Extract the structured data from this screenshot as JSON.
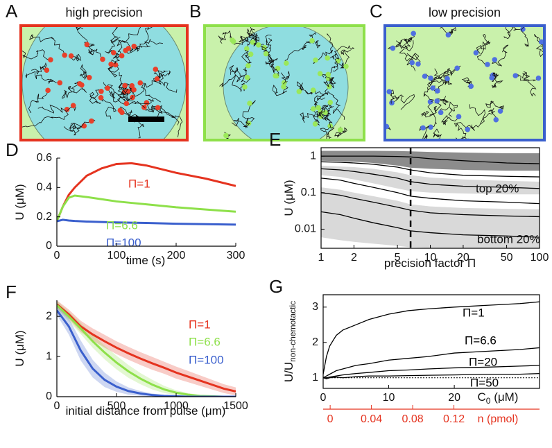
{
  "panels": [
    {
      "label": "A",
      "title": "high precision",
      "color": "#e5331f",
      "dot_color": "#e8402a",
      "circle": true
    },
    {
      "label": "B",
      "title": "",
      "color": "#8ee04a",
      "dot_color": "#9be85a",
      "circle": true
    },
    {
      "label": "C",
      "title": "low precision",
      "color": "#3a5fcd",
      "dot_color": "#4f70e0",
      "circle": false
    }
  ],
  "chart_data": [
    {
      "type": "line",
      "panel_label": "D",
      "xlabel": "time (s)",
      "ylabel": "U (μM)",
      "box": false,
      "x": [
        0,
        10,
        20,
        30,
        50,
        75,
        100,
        125,
        150,
        200,
        250,
        300
      ],
      "xlim": [
        0,
        300
      ],
      "xticks": [
        0,
        100,
        200,
        300
      ],
      "ylim": [
        0,
        0.6
      ],
      "yticks": [
        0,
        0.2,
        0.4,
        0.6
      ],
      "series": [
        {
          "name": "Π=1",
          "color": "#e5331f",
          "values": [
            0.17,
            0.27,
            0.35,
            0.4,
            0.48,
            0.53,
            0.56,
            0.565,
            0.55,
            0.5,
            0.46,
            0.41
          ]
        },
        {
          "name": "Π=6.6",
          "color": "#8ee04a",
          "values": [
            0.17,
            0.27,
            0.33,
            0.345,
            0.335,
            0.32,
            0.305,
            0.295,
            0.285,
            0.265,
            0.25,
            0.235
          ]
        },
        {
          "name": "Π=100",
          "color": "#3a5fcd",
          "values": [
            0.17,
            0.18,
            0.175,
            0.172,
            0.168,
            0.165,
            0.162,
            0.16,
            0.158,
            0.153,
            0.15,
            0.147
          ]
        }
      ]
    },
    {
      "type": "line",
      "panel_label": "E",
      "xlabel": "precision factor Π",
      "ylabel": "U (μM)",
      "box": true,
      "xlog": true,
      "ylog": true,
      "x": [
        1,
        1.5,
        2,
        3,
        5,
        6.6,
        10,
        20,
        50,
        100
      ],
      "xlim": [
        1,
        100
      ],
      "xticks": [
        1,
        2,
        5,
        10,
        20,
        50,
        100
      ],
      "ylim": [
        0.003,
        1.7
      ],
      "yticks": [
        0.01,
        0.1,
        1
      ],
      "vline": 6.6,
      "bands": [
        {
          "color": "#8c8c8c",
          "upper": [
            1.4,
            1.4,
            1.4,
            1.4,
            1.38,
            1.35,
            1.3,
            1.25,
            1.2,
            1.2
          ],
          "lower": [
            0.75,
            0.73,
            0.7,
            0.65,
            0.55,
            0.48,
            0.45,
            0.42,
            0.4,
            0.4
          ]
        },
        {
          "color": "#d9d9d9",
          "upper": [
            0.55,
            0.52,
            0.5,
            0.45,
            0.36,
            0.3,
            0.26,
            0.23,
            0.21,
            0.2
          ],
          "lower": [
            0.3,
            0.27,
            0.23,
            0.18,
            0.13,
            0.11,
            0.1,
            0.095,
            0.09,
            0.09
          ]
        },
        {
          "color": "#d9d9d9",
          "upper": [
            0.14,
            0.12,
            0.1,
            0.08,
            0.06,
            0.048,
            0.042,
            0.038,
            0.036,
            0.035
          ],
          "lower": [
            0.006,
            0.005,
            0.0045,
            0.004,
            0.0035,
            0.0032,
            0.0031,
            0.003,
            0.003,
            0.003
          ]
        }
      ],
      "line_color": "#000000",
      "lines": [
        [
          1.0,
          1.0,
          1.0,
          1.0,
          0.98,
          0.95,
          0.85,
          0.75,
          0.65,
          0.62
        ],
        [
          0.7,
          0.68,
          0.65,
          0.6,
          0.5,
          0.42,
          0.35,
          0.3,
          0.28,
          0.27
        ],
        [
          0.45,
          0.42,
          0.38,
          0.32,
          0.25,
          0.2,
          0.17,
          0.15,
          0.14,
          0.13
        ],
        [
          0.25,
          0.22,
          0.18,
          0.14,
          0.1,
          0.08,
          0.07,
          0.06,
          0.055,
          0.05
        ],
        [
          0.1,
          0.085,
          0.07,
          0.055,
          0.04,
          0.033,
          0.028,
          0.025,
          0.023,
          0.022
        ],
        [
          0.03,
          0.025,
          0.02,
          0.015,
          0.011,
          0.009,
          0.008,
          0.007,
          0.0065,
          0.006
        ]
      ],
      "annotations": [
        "top 20%",
        "bottom 20%"
      ]
    },
    {
      "type": "line",
      "panel_label": "F",
      "xlabel": "initial distance from pulse (μm)",
      "ylabel": "U (μM)",
      "box": false,
      "x": [
        0,
        100,
        200,
        300,
        400,
        500,
        600,
        700,
        800,
        900,
        1000,
        1100,
        1200,
        1300,
        1400,
        1500
      ],
      "xlim": [
        0,
        1500
      ],
      "xticks": [
        0,
        500,
        1000,
        1500
      ],
      "ylim": [
        0,
        2.4
      ],
      "yticks": [
        0,
        1,
        2
      ],
      "series": [
        {
          "name": "Π=1",
          "color": "#e5331f",
          "values": [
            2.3,
            2.05,
            1.75,
            1.55,
            1.38,
            1.22,
            1.08,
            0.95,
            0.83,
            0.72,
            0.6,
            0.5,
            0.4,
            0.3,
            0.2,
            0.13
          ],
          "error": [
            0.1,
            0.12,
            0.14,
            0.15,
            0.16,
            0.16,
            0.16,
            0.16,
            0.16,
            0.15,
            0.15,
            0.14,
            0.13,
            0.12,
            0.11,
            0.1
          ]
        },
        {
          "name": "Π=6.6",
          "color": "#8ee04a",
          "values": [
            2.28,
            2.0,
            1.7,
            1.38,
            1.1,
            0.85,
            0.63,
            0.45,
            0.3,
            0.18,
            0.1,
            0.05,
            0.02,
            0.01,
            0,
            0
          ],
          "error": [
            0.1,
            0.12,
            0.14,
            0.16,
            0.17,
            0.17,
            0.16,
            0.14,
            0.12,
            0.09,
            0.06,
            0.04,
            0.02,
            0.01,
            0.01,
            0.01
          ]
        },
        {
          "name": "Π=100",
          "color": "#3a5fcd",
          "values": [
            2.15,
            1.75,
            1.15,
            0.7,
            0.42,
            0.25,
            0.14,
            0.08,
            0.04,
            0.02,
            0.01,
            0,
            0,
            0,
            0,
            0
          ],
          "error": [
            0.12,
            0.2,
            0.25,
            0.22,
            0.18,
            0.13,
            0.09,
            0.06,
            0.04,
            0.02,
            0.01,
            0.01,
            0.01,
            0,
            0,
            0
          ]
        }
      ]
    },
    {
      "type": "line",
      "panel_label": "G",
      "ylabel": "U/U",
      "ylabel_sub": "non-chemotactic",
      "box": true,
      "xlabel": "C",
      "xlabel_sub": "0",
      "xlabel_unit": " (μM)",
      "x": [
        0,
        0.5,
        1,
        2,
        3,
        5,
        7,
        10,
        13,
        16,
        20,
        25,
        30,
        33
      ],
      "xlim": [
        0,
        33
      ],
      "xticks": [
        0,
        10,
        20
      ],
      "ylim": [
        0.7,
        3.35
      ],
      "yticks": [
        1,
        2,
        3
      ],
      "x2lim": [
        -0.0068,
        0.203
      ],
      "x2ticks": [
        0,
        0.04,
        0.08,
        0.12
      ],
      "x2label": "n (pmol)",
      "x2color": "#e5331f",
      "reference_line": 1,
      "series": [
        {
          "name": "Π=1",
          "color": "#000000",
          "values": [
            1.1,
            1.6,
            1.9,
            2.2,
            2.35,
            2.5,
            2.65,
            2.8,
            2.9,
            2.95,
            3.0,
            3.05,
            3.1,
            3.15
          ]
        },
        {
          "name": "Π=6.6",
          "color": "#000000",
          "values": [
            1.0,
            1.05,
            1.1,
            1.2,
            1.25,
            1.35,
            1.4,
            1.5,
            1.55,
            1.6,
            1.7,
            1.75,
            1.8,
            1.85
          ]
        },
        {
          "name": "Π=20",
          "color": "#000000",
          "values": [
            1.0,
            1.0,
            1.02,
            1.05,
            1.08,
            1.12,
            1.15,
            1.2,
            1.22,
            1.25,
            1.28,
            1.3,
            1.33,
            1.35
          ]
        },
        {
          "name": "Π=50",
          "color": "#000000",
          "values": [
            1.0,
            0.97,
            1.0,
            1.02,
            1.0,
            1.03,
            1.05,
            1.05,
            1.06,
            1.07,
            1.08,
            1.1,
            1.1,
            1.12
          ]
        }
      ]
    }
  ]
}
